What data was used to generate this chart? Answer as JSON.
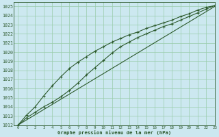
{
  "title": "Graphe pression niveau de la mer (hPa)",
  "background_color": "#cce8f0",
  "grid_color": "#99ccaa",
  "line_color": "#2d5a2d",
  "xlim": [
    -0.5,
    23
  ],
  "ylim": [
    1012,
    1025.5
  ],
  "xticks": [
    0,
    1,
    2,
    3,
    4,
    5,
    6,
    7,
    8,
    9,
    10,
    11,
    12,
    13,
    14,
    15,
    16,
    17,
    18,
    19,
    20,
    21,
    22,
    23
  ],
  "yticks": [
    1012,
    1013,
    1014,
    1015,
    1016,
    1017,
    1018,
    1019,
    1020,
    1021,
    1022,
    1023,
    1024,
    1025
  ],
  "line_straight": [
    1012.0,
    1012.57,
    1013.13,
    1013.7,
    1014.26,
    1014.83,
    1015.39,
    1015.96,
    1016.52,
    1017.09,
    1017.65,
    1018.22,
    1018.78,
    1019.35,
    1019.91,
    1020.48,
    1021.04,
    1021.61,
    1022.17,
    1022.74,
    1023.3,
    1023.87,
    1024.43,
    1025.0
  ],
  "line_upper": [
    1012.0,
    1013.1,
    1014.0,
    1015.2,
    1016.3,
    1017.3,
    1018.2,
    1018.9,
    1019.5,
    1020.1,
    1020.6,
    1021.1,
    1021.5,
    1021.9,
    1022.2,
    1022.6,
    1022.9,
    1023.2,
    1023.5,
    1023.9,
    1024.2,
    1024.6,
    1024.9,
    1025.1
  ],
  "line_lower": [
    1012.0,
    1012.8,
    1013.4,
    1014.0,
    1014.5,
    1015.1,
    1015.8,
    1016.6,
    1017.5,
    1018.3,
    1019.1,
    1019.9,
    1020.6,
    1021.1,
    1021.6,
    1022.0,
    1022.4,
    1022.8,
    1023.1,
    1023.5,
    1023.9,
    1024.3,
    1024.7,
    1025.1
  ]
}
